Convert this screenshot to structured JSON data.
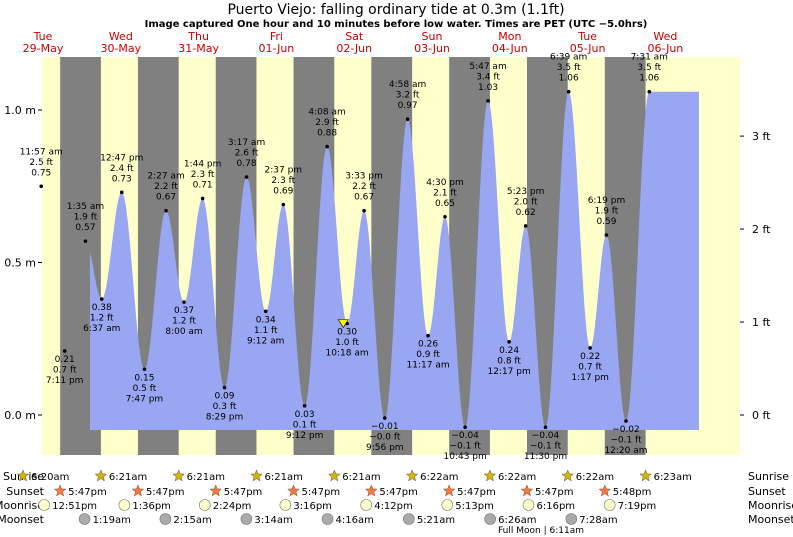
{
  "header": {
    "title": "Puerto Viejo: falling  ordinary tide at 0.3m (1.1ft)",
    "subtitle": "Image captured One hour and 10 minutes before low water. Times are PET (UTC −5.0hrs)"
  },
  "colors": {
    "night": "#808080",
    "day": "#ffffcc",
    "water": "#99a6f2",
    "day_label": "#cc0000"
  },
  "chart_data": {
    "type": "area",
    "ylim_m": [
      -0.16,
      1.17
    ],
    "y_ticks_m": [
      "0.0 m",
      "0.5 m",
      "1.0 m"
    ],
    "y_ticks_ft": [
      "0 ft",
      "1 ft",
      "2 ft",
      "3 ft"
    ],
    "days": [
      {
        "name": "Tue",
        "date": "29-May"
      },
      {
        "name": "Wed",
        "date": "30-May"
      },
      {
        "name": "Thu",
        "date": "31-May"
      },
      {
        "name": "Fri",
        "date": "01-Jun"
      },
      {
        "name": "Sat",
        "date": "02-Jun"
      },
      {
        "name": "Sun",
        "date": "03-Jun"
      },
      {
        "name": "Mon",
        "date": "04-Jun"
      },
      {
        "name": "Tue",
        "date": "05-Jun"
      },
      {
        "name": "Wed",
        "date": "06-Jun"
      }
    ],
    "tides": [
      {
        "day": 0,
        "time": "11:57 am",
        "ft": "2.5 ft",
        "m": "0.75 m",
        "value": 0.75,
        "type": "high"
      },
      {
        "day": 0,
        "time": "7:11 pm",
        "ft": "0.7 ft",
        "m": "0.21 m",
        "value": 0.21,
        "type": "low"
      },
      {
        "day": 1,
        "time": "1:35 am",
        "ft": "1.9 ft",
        "m": "0.57 m",
        "value": 0.57,
        "type": "high"
      },
      {
        "day": 1,
        "time": "6:37 am",
        "ft": "1.2 ft",
        "m": "0.38 m",
        "value": 0.38,
        "type": "low"
      },
      {
        "day": 1,
        "time": "12:47 pm",
        "ft": "2.4 ft",
        "m": "0.73 m",
        "value": 0.73,
        "type": "high"
      },
      {
        "day": 1,
        "time": "7:47 pm",
        "ft": "0.5 ft",
        "m": "0.15 m",
        "value": 0.15,
        "type": "low"
      },
      {
        "day": 2,
        "time": "2:27 am",
        "ft": "2.2 ft",
        "m": "0.67 m",
        "value": 0.67,
        "type": "high"
      },
      {
        "day": 2,
        "time": "8:00 am",
        "ft": "1.2 ft",
        "m": "0.37 m",
        "value": 0.37,
        "type": "low"
      },
      {
        "day": 2,
        "time": "1:44 pm",
        "ft": "2.3 ft",
        "m": "0.71 m",
        "value": 0.71,
        "type": "high"
      },
      {
        "day": 2,
        "time": "8:29 pm",
        "ft": "0.3 ft",
        "m": "0.09 m",
        "value": 0.09,
        "type": "low"
      },
      {
        "day": 3,
        "time": "3:17 am",
        "ft": "2.6 ft",
        "m": "0.78 m",
        "value": 0.78,
        "type": "high"
      },
      {
        "day": 3,
        "time": "9:12 am",
        "ft": "1.1 ft",
        "m": "0.34 m",
        "value": 0.34,
        "type": "low"
      },
      {
        "day": 3,
        "time": "2:37 pm",
        "ft": "2.3 ft",
        "m": "0.69 m",
        "value": 0.69,
        "type": "high"
      },
      {
        "day": 3,
        "time": "9:12 pm",
        "ft": "0.1 ft",
        "m": "0.03 m",
        "value": 0.03,
        "type": "low"
      },
      {
        "day": 4,
        "time": "4:08 am",
        "ft": "2.9 ft",
        "m": "0.88 m",
        "value": 0.88,
        "type": "high"
      },
      {
        "day": 4,
        "time": "10:18 am",
        "ft": "1.0 ft",
        "m": "0.30 m",
        "value": 0.3,
        "type": "low"
      },
      {
        "day": 4,
        "time": "3:33 pm",
        "ft": "2.2 ft",
        "m": "0.67 m",
        "value": 0.67,
        "type": "high"
      },
      {
        "day": 4,
        "time": "9:56 pm",
        "ft": "−0.0 ft",
        "m": "−0.01 m",
        "value": -0.01,
        "type": "low"
      },
      {
        "day": 5,
        "time": "4:58 am",
        "ft": "3.2 ft",
        "m": "0.97 m",
        "value": 0.97,
        "type": "high"
      },
      {
        "day": 5,
        "time": "11:17 am",
        "ft": "0.9 ft",
        "m": "0.26 m",
        "value": 0.26,
        "type": "low"
      },
      {
        "day": 5,
        "time": "4:30 pm",
        "ft": "2.1 ft",
        "m": "0.65 m",
        "value": 0.65,
        "type": "high"
      },
      {
        "day": 5,
        "time": "10:43 pm",
        "ft": "−0.1 ft",
        "m": "−0.04 m",
        "value": -0.04,
        "type": "low"
      },
      {
        "day": 6,
        "time": "5:47 am",
        "ft": "3.4 ft",
        "m": "1.03 m",
        "value": 1.03,
        "type": "high"
      },
      {
        "day": 6,
        "time": "12:17 pm",
        "ft": "0.8 ft",
        "m": "0.24 m",
        "value": 0.24,
        "type": "low"
      },
      {
        "day": 6,
        "time": "5:23 pm",
        "ft": "2.0 ft",
        "m": "0.62 m",
        "value": 0.62,
        "type": "high"
      },
      {
        "day": 6,
        "time": "11:30 pm",
        "ft": "−0.1 ft",
        "m": "−0.04 m",
        "value": -0.04,
        "type": "low"
      },
      {
        "day": 7,
        "time": "6:39 am",
        "ft": "3.5 ft",
        "m": "1.06 m",
        "value": 1.06,
        "type": "high"
      },
      {
        "day": 7,
        "time": "1:17 pm",
        "ft": "0.7 ft",
        "m": "0.22 m",
        "value": 0.22,
        "type": "low"
      },
      {
        "day": 7,
        "time": "6:19 pm",
        "ft": "1.9 ft",
        "m": "0.59 m",
        "value": 0.59,
        "type": "high"
      },
      {
        "day": 8,
        "time": "12:20 am",
        "ft": "−0.1 ft",
        "m": "−0.02 m",
        "value": -0.02,
        "type": "low"
      },
      {
        "day": 8,
        "time": "7:31 am",
        "ft": "3.5 ft",
        "m": "1.06 m",
        "value": 1.06,
        "type": "high"
      }
    ],
    "current": {
      "day": 4,
      "time": "9:08 am",
      "value": 0.3
    }
  },
  "astro": {
    "row_labels": {
      "sunrise": "Sunrise",
      "sunset": "Sunset",
      "moonrise": "Moonrise",
      "moonset": "Moonset"
    },
    "sunrise": [
      {
        "day": 0,
        "time": "6:20am"
      },
      {
        "day": 1,
        "time": "6:21am"
      },
      {
        "day": 2,
        "time": "6:21am"
      },
      {
        "day": 3,
        "time": "6:21am"
      },
      {
        "day": 4,
        "time": "6:21am"
      },
      {
        "day": 5,
        "time": "6:22am"
      },
      {
        "day": 6,
        "time": "6:22am"
      },
      {
        "day": 7,
        "time": "6:22am"
      },
      {
        "day": 8,
        "time": "6:23am"
      }
    ],
    "sunset": [
      {
        "day": 0,
        "time": "5:47pm"
      },
      {
        "day": 1,
        "time": "5:47pm"
      },
      {
        "day": 2,
        "time": "5:47pm"
      },
      {
        "day": 3,
        "time": "5:47pm"
      },
      {
        "day": 4,
        "time": "5:47pm"
      },
      {
        "day": 5,
        "time": "5:47pm"
      },
      {
        "day": 6,
        "time": "5:47pm"
      },
      {
        "day": 7,
        "time": "5:48pm"
      }
    ],
    "moonrise": [
      {
        "day": 0,
        "time": "12:51pm"
      },
      {
        "day": 1,
        "time": "1:36pm"
      },
      {
        "day": 2,
        "time": "2:24pm"
      },
      {
        "day": 3,
        "time": "3:16pm"
      },
      {
        "day": 4,
        "time": "4:12pm"
      },
      {
        "day": 5,
        "time": "5:13pm"
      },
      {
        "day": 6,
        "time": "6:16pm"
      },
      {
        "day": 7,
        "time": "7:19pm"
      }
    ],
    "moonset": [
      {
        "day": 1,
        "time": "1:19am"
      },
      {
        "day": 2,
        "time": "2:15am"
      },
      {
        "day": 3,
        "time": "3:14am"
      },
      {
        "day": 4,
        "time": "4:16am"
      },
      {
        "day": 5,
        "time": "5:21am"
      },
      {
        "day": 6,
        "time": "6:26am"
      },
      {
        "day": 7,
        "time": "7:28am"
      }
    ],
    "full_moon": "Full Moon | 6:11am"
  }
}
